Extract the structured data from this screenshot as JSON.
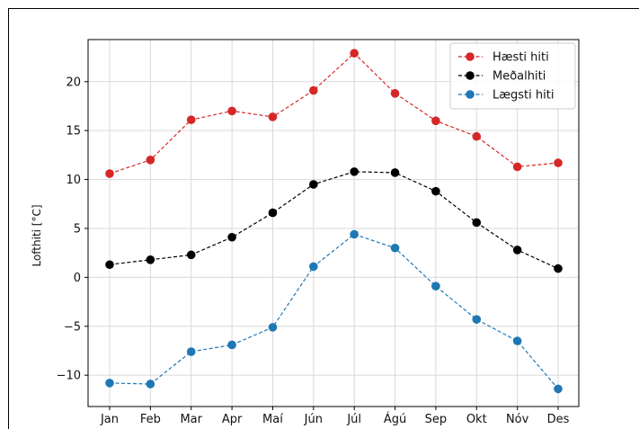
{
  "chart_data": {
    "type": "line",
    "title": "",
    "xlabel": "",
    "ylabel": "Lofthiti [°C]",
    "categories": [
      "Jan",
      "Feb",
      "Mar",
      "Apr",
      "Maí",
      "Jún",
      "Júl",
      "Ágú",
      "Sep",
      "Okt",
      "Nóv",
      "Des"
    ],
    "ylim": [
      -13.2,
      24.3
    ],
    "yticks": [
      -10,
      -5,
      0,
      5,
      10,
      15,
      20
    ],
    "ytick_labels": [
      "−10",
      "−5",
      "0",
      "5",
      "10",
      "15",
      "20"
    ],
    "grid": true,
    "legend_position": "top-right",
    "series": [
      {
        "name": "Hæsti hiti",
        "color": "#d62728",
        "marker": "circle",
        "linestyle": "dashed",
        "values": [
          10.6,
          12.0,
          16.1,
          17.0,
          16.4,
          19.1,
          22.9,
          18.8,
          16.0,
          14.4,
          11.3,
          11.7
        ]
      },
      {
        "name": "Meðalhiti",
        "color": "#000000",
        "marker": "circle",
        "linestyle": "dashed",
        "values": [
          1.3,
          1.8,
          2.3,
          4.1,
          6.6,
          9.5,
          10.8,
          10.7,
          8.8,
          5.6,
          2.8,
          0.9
        ]
      },
      {
        "name": "Lægsti hiti",
        "color": "#1f77b4",
        "marker": "circle",
        "linestyle": "dashed",
        "values": [
          -10.8,
          -10.9,
          -7.6,
          -6.9,
          -5.1,
          1.1,
          4.4,
          3.0,
          -0.9,
          -4.3,
          -6.5,
          -11.4
        ]
      }
    ]
  }
}
